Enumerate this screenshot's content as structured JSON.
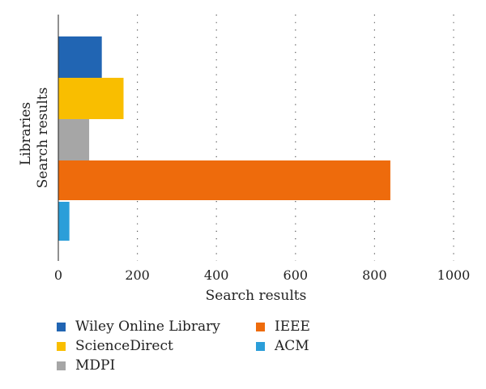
{
  "chart_data": {
    "type": "bar",
    "orientation": "horizontal",
    "xlabel": "Search results",
    "ylabel_lines": [
      "Libraries",
      "Search results"
    ],
    "xlim": [
      0,
      1000
    ],
    "xticks": [
      0,
      200,
      400,
      600,
      800,
      1000
    ],
    "grid": "vertical dotted",
    "legend_placement": "bottom",
    "series": [
      {
        "name": "Wiley Online Library",
        "value": 110,
        "color": "#2165b3"
      },
      {
        "name": "ScienceDirect",
        "value": 165,
        "color": "#f9be00"
      },
      {
        "name": "MDPI",
        "value": 78,
        "color": "#a6a6a6"
      },
      {
        "name": "IEEE",
        "value": 840,
        "color": "#ee6b0c"
      },
      {
        "name": "ACM",
        "value": 28,
        "color": "#2b9ed9"
      }
    ]
  }
}
